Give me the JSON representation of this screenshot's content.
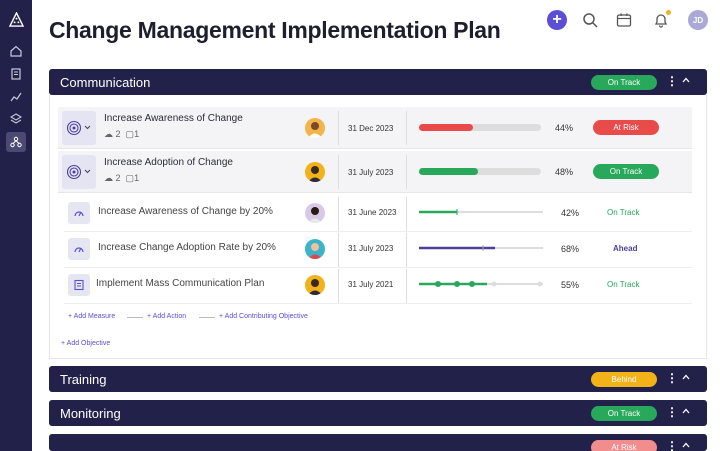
{
  "page": {
    "title": "Change Management Implementation Plan"
  },
  "topbar": {
    "avatar_initials": "JD",
    "plus_label": "+"
  },
  "sidebar": {
    "items": [
      "home",
      "reports",
      "analytics",
      "layers",
      "hierarchy"
    ]
  },
  "colors": {
    "navy": "#22214a",
    "accent": "#5b4fd6",
    "green": "#27a85a",
    "red": "#e94b4b",
    "yellow": "#f2b21a",
    "purple": "#4b3f9c"
  },
  "sections": [
    {
      "name": "Communication",
      "status": "On Track"
    },
    {
      "name": "Training",
      "status": "Behind"
    },
    {
      "name": "Monitoring",
      "status": "On Track"
    },
    {
      "name": "",
      "status": "At Risk"
    }
  ],
  "objectives": [
    {
      "name": "Increase Awareness of Change",
      "links": "2",
      "docs": "1",
      "date": "31 Dec 2023",
      "progress": 44,
      "pct_label": "44%",
      "status": "At Risk"
    },
    {
      "name": "Increase Adoption of Change",
      "links": "2",
      "docs": "1",
      "date": "31 July 2023",
      "progress": 48,
      "pct_label": "48%",
      "status": "On Track"
    }
  ],
  "key_results": [
    {
      "name": "Increase Awareness of Change by 20%",
      "date": "31 June 2023",
      "progress": 42,
      "pct_label": "42%",
      "status": "On Track"
    },
    {
      "name": "Increase Change Adoption Rate by 20%",
      "date": "31 July 2023",
      "progress": 68,
      "pct_label": "68%",
      "status": "Ahead"
    },
    {
      "name": "Implement Mass Communication Plan",
      "date": "31 July 2021",
      "progress": 55,
      "pct_label": "55%",
      "status": "On Track"
    }
  ],
  "actions": {
    "add_measure": "+ Add Measure",
    "add_action": "+ Add Action",
    "add_contributing": "+ Add Contributing Objective",
    "add_objective": "+ Add Objective"
  },
  "menu": {
    "kebab": "⋮",
    "collapse": "^"
  }
}
